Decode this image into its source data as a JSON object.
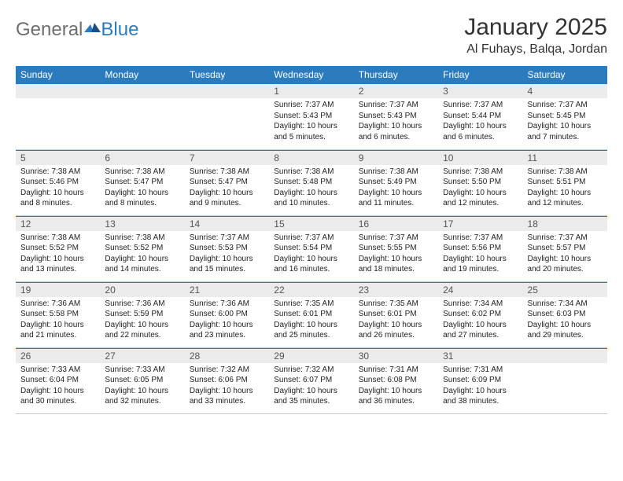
{
  "brand": {
    "word1": "General",
    "word2": "Blue"
  },
  "title": "January 2025",
  "location": "Al Fuhays, Balqa, Jordan",
  "colors": {
    "header_bg": "#2b7bbf",
    "header_fg": "#ffffff",
    "daynum_bg": "#ebebeb",
    "daynum_fg": "#555555",
    "border": "#c7c7c7",
    "accent_border": "#2b7bbf",
    "text": "#222222",
    "title_color": "#333333"
  },
  "weekdays": [
    "Sunday",
    "Monday",
    "Tuesday",
    "Wednesday",
    "Thursday",
    "Friday",
    "Saturday"
  ],
  "weeks": [
    [
      null,
      null,
      null,
      {
        "n": "1",
        "sr": "7:37 AM",
        "ss": "5:43 PM",
        "dl": "10 hours and 5 minutes."
      },
      {
        "n": "2",
        "sr": "7:37 AM",
        "ss": "5:43 PM",
        "dl": "10 hours and 6 minutes."
      },
      {
        "n": "3",
        "sr": "7:37 AM",
        "ss": "5:44 PM",
        "dl": "10 hours and 6 minutes."
      },
      {
        "n": "4",
        "sr": "7:37 AM",
        "ss": "5:45 PM",
        "dl": "10 hours and 7 minutes."
      }
    ],
    [
      {
        "n": "5",
        "sr": "7:38 AM",
        "ss": "5:46 PM",
        "dl": "10 hours and 8 minutes."
      },
      {
        "n": "6",
        "sr": "7:38 AM",
        "ss": "5:47 PM",
        "dl": "10 hours and 8 minutes."
      },
      {
        "n": "7",
        "sr": "7:38 AM",
        "ss": "5:47 PM",
        "dl": "10 hours and 9 minutes."
      },
      {
        "n": "8",
        "sr": "7:38 AM",
        "ss": "5:48 PM",
        "dl": "10 hours and 10 minutes."
      },
      {
        "n": "9",
        "sr": "7:38 AM",
        "ss": "5:49 PM",
        "dl": "10 hours and 11 minutes."
      },
      {
        "n": "10",
        "sr": "7:38 AM",
        "ss": "5:50 PM",
        "dl": "10 hours and 12 minutes."
      },
      {
        "n": "11",
        "sr": "7:38 AM",
        "ss": "5:51 PM",
        "dl": "10 hours and 12 minutes."
      }
    ],
    [
      {
        "n": "12",
        "sr": "7:38 AM",
        "ss": "5:52 PM",
        "dl": "10 hours and 13 minutes."
      },
      {
        "n": "13",
        "sr": "7:38 AM",
        "ss": "5:52 PM",
        "dl": "10 hours and 14 minutes."
      },
      {
        "n": "14",
        "sr": "7:37 AM",
        "ss": "5:53 PM",
        "dl": "10 hours and 15 minutes."
      },
      {
        "n": "15",
        "sr": "7:37 AM",
        "ss": "5:54 PM",
        "dl": "10 hours and 16 minutes."
      },
      {
        "n": "16",
        "sr": "7:37 AM",
        "ss": "5:55 PM",
        "dl": "10 hours and 18 minutes."
      },
      {
        "n": "17",
        "sr": "7:37 AM",
        "ss": "5:56 PM",
        "dl": "10 hours and 19 minutes."
      },
      {
        "n": "18",
        "sr": "7:37 AM",
        "ss": "5:57 PM",
        "dl": "10 hours and 20 minutes."
      }
    ],
    [
      {
        "n": "19",
        "sr": "7:36 AM",
        "ss": "5:58 PM",
        "dl": "10 hours and 21 minutes."
      },
      {
        "n": "20",
        "sr": "7:36 AM",
        "ss": "5:59 PM",
        "dl": "10 hours and 22 minutes."
      },
      {
        "n": "21",
        "sr": "7:36 AM",
        "ss": "6:00 PM",
        "dl": "10 hours and 23 minutes."
      },
      {
        "n": "22",
        "sr": "7:35 AM",
        "ss": "6:01 PM",
        "dl": "10 hours and 25 minutes."
      },
      {
        "n": "23",
        "sr": "7:35 AM",
        "ss": "6:01 PM",
        "dl": "10 hours and 26 minutes."
      },
      {
        "n": "24",
        "sr": "7:34 AM",
        "ss": "6:02 PM",
        "dl": "10 hours and 27 minutes."
      },
      {
        "n": "25",
        "sr": "7:34 AM",
        "ss": "6:03 PM",
        "dl": "10 hours and 29 minutes."
      }
    ],
    [
      {
        "n": "26",
        "sr": "7:33 AM",
        "ss": "6:04 PM",
        "dl": "10 hours and 30 minutes."
      },
      {
        "n": "27",
        "sr": "7:33 AM",
        "ss": "6:05 PM",
        "dl": "10 hours and 32 minutes."
      },
      {
        "n": "28",
        "sr": "7:32 AM",
        "ss": "6:06 PM",
        "dl": "10 hours and 33 minutes."
      },
      {
        "n": "29",
        "sr": "7:32 AM",
        "ss": "6:07 PM",
        "dl": "10 hours and 35 minutes."
      },
      {
        "n": "30",
        "sr": "7:31 AM",
        "ss": "6:08 PM",
        "dl": "10 hours and 36 minutes."
      },
      {
        "n": "31",
        "sr": "7:31 AM",
        "ss": "6:09 PM",
        "dl": "10 hours and 38 minutes."
      },
      null
    ]
  ],
  "labels": {
    "sunrise": "Sunrise:",
    "sunset": "Sunset:",
    "daylight": "Daylight:"
  }
}
